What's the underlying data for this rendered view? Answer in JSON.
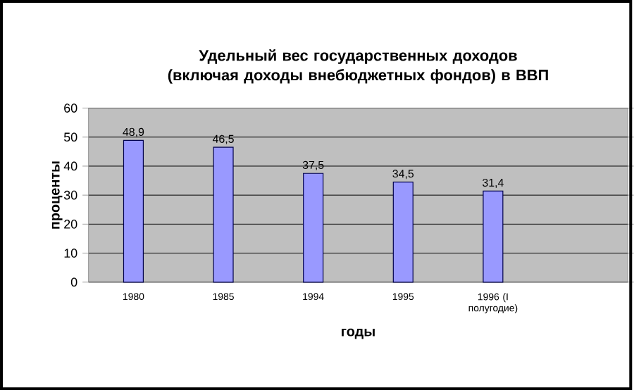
{
  "chart_data": {
    "type": "bar",
    "title": "Удельный вес государственных доходов (включая доходы внебюджетных фондов) в ВВП",
    "xlabel": "годы",
    "ylabel": "проценты",
    "categories": [
      "1980",
      "1985",
      "1994",
      "1995",
      "1996 (I полугодие)",
      null
    ],
    "values": [
      48.9,
      46.5,
      37.5,
      34.5,
      31.4,
      null
    ],
    "value_labels": [
      "48,9",
      "46,5",
      "37,5",
      "34,5",
      "31,4",
      null
    ],
    "color": "#9999ff",
    "ylim": [
      0,
      60
    ],
    "yticks": [
      0,
      10,
      20,
      30,
      40,
      50,
      60
    ],
    "grid": "y"
  }
}
